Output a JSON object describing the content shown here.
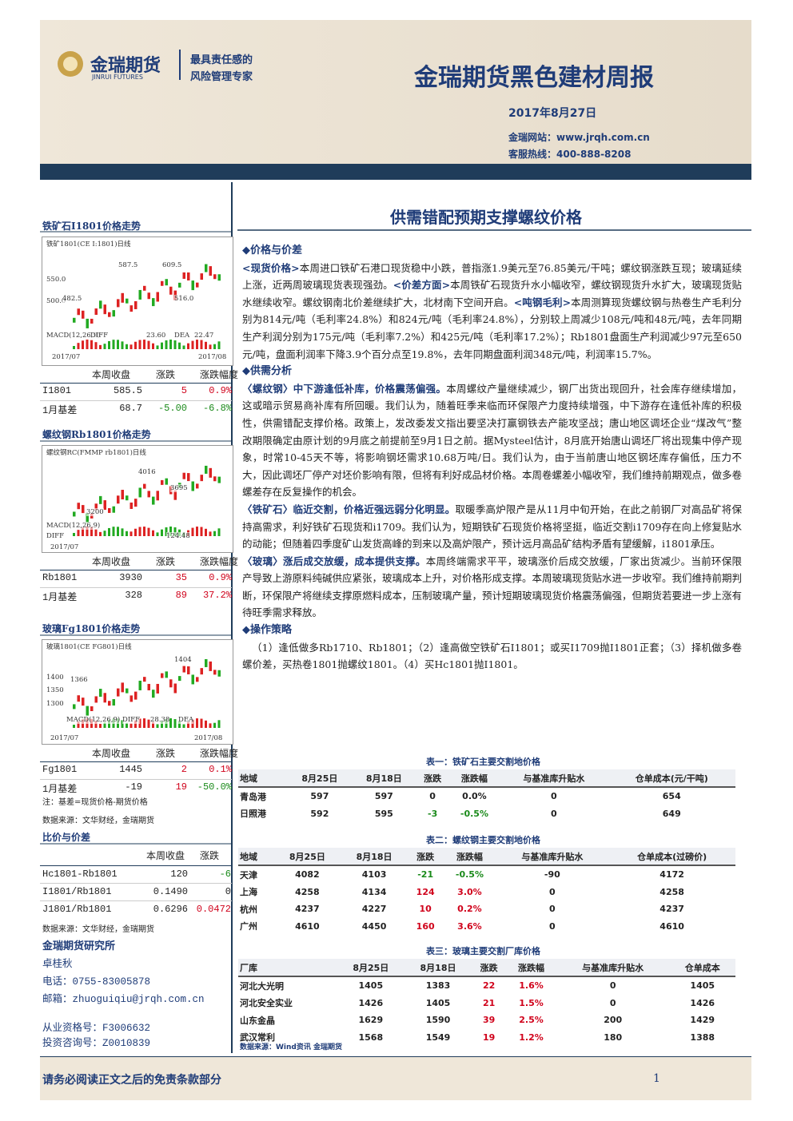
{
  "header": {
    "logo_name": "金瑞期货",
    "logo_sub": "JINRUI FUTURES",
    "slogan": [
      "最具责任感的",
      "风险管理专家"
    ],
    "title": "金瑞期货黑色建材周报",
    "date": "2017年8月27日",
    "website": "金瑞网站：www.jrqh.com.cn",
    "hotline": "客服热线：400-888-8208"
  },
  "headline": "供需错配预期支撑螺纹价格",
  "sidebar": {
    "charts": [
      {
        "title": "铁矿石I1801价格走势",
        "chart_labels": [
          "铁矿1801(CE I:1801)日线",
          "587.5",
          "609.5",
          "550.0",
          "500.0",
          "482.5",
          "516.0",
          "MACD(12,26,9)",
          "DIFF",
          "23.60",
          "DEA",
          "22.47",
          "2017/07",
          "2017/08"
        ],
        "headers": [
          "本周收盘",
          "涨跌",
          "涨跌幅度"
        ],
        "rows": [
          [
            "I1801",
            "585.5",
            "5",
            "0.9%"
          ],
          [
            "1月基差",
            "68.7",
            "-5.00",
            "-6.8%"
          ]
        ]
      },
      {
        "title": "螺纹钢Rb1801价格走势",
        "chart_labels": [
          "螺纹钢RC(FMMP rb1801)日线",
          "4016",
          "3695",
          "3200",
          "MACD(12,26,9)",
          "DIFF",
          "124.48",
          "2017/07"
        ],
        "headers": [
          "本周收盘",
          "涨跌",
          "涨跌幅度"
        ],
        "rows": [
          [
            "Rb1801",
            "3930",
            "35",
            "0.9%"
          ],
          [
            "1月基差",
            "328",
            "89",
            "37.2%"
          ]
        ]
      },
      {
        "title": "玻璃Fg1801价格走势",
        "chart_labels": [
          "玻璃1801(CE FG801)日线",
          "1404",
          "1366",
          "1400",
          "1350",
          "1300",
          "MACD(12,26,9)",
          "DIFF",
          "28.38",
          "DEA",
          "2017/07",
          "2017/08"
        ],
        "headers": [
          "本周收盘",
          "涨跌",
          "涨跌幅度"
        ],
        "rows": [
          [
            "Fg1801",
            "1445",
            "2",
            "0.1%"
          ],
          [
            "1月基差",
            "-19",
            "19",
            "-50.0%"
          ]
        ]
      }
    ],
    "note": "注：基差=现货价格-期货价格",
    "source": "数据来源：文华财经，金瑞期货",
    "ratio": {
      "title": "比价与价差",
      "headers": [
        "本周收盘",
        "涨跌"
      ],
      "rows": [
        [
          "Hc1801-Rb1801",
          "120",
          "-6"
        ],
        [
          "I1801/Rb1801",
          "0.1490",
          "0"
        ],
        [
          "J1801/Rb1801",
          "0.6296",
          "0.0472"
        ]
      ],
      "source": "数据来源：文华财经，金瑞期货"
    },
    "contact": {
      "institute": "金瑞期货研究所",
      "name": "卓桂秋",
      "phone": "电话：0755-83005878",
      "email": "邮箱：zhuoguiqiu@jrqh.com.cn",
      "cert": "从业资格号：F3006632",
      "advisory": "投资咨询号：Z0010839"
    }
  },
  "main": {
    "sections": [
      {
        "heading": "价格与价差",
        "paragraphs": [
          {
            "segments": [
              {
                "text": "<现货价格>",
                "hl": true
              },
              {
                "text": "本周进口铁矿石港口现货稳中小跌，普指涨1.9美元至76.85美元/干吨；螺纹钢涨跌互现；玻璃延续上涨，近两周玻璃现货表现强劲。"
              },
              {
                "text": "<价差方面>",
                "hl": true
              },
              {
                "text": "本周铁矿石现货升水小幅收窄，螺纹钢现货升水扩大，玻璃现货贴水继续收窄。螺纹钢南北价差继续扩大，北材南下空间开启。"
              },
              {
                "text": "<吨钢毛利>",
                "hl": true
              },
              {
                "text": "本周测算现货螺纹钢与热卷生产毛利分别为814元/吨（毛利率24.8%）和824元/吨（毛利率24.8%），分别较上周减少108元/吨和48元/吨，去年同期生产利润分别为175元/吨（毛利率7.2%）和425元/吨（毛利率17.2%）；Rb1801盘面生产利润减少97元至650元/吨，盘面利润率下降3.9个百分点至19.8%，去年同期盘面利润348元/吨，利润率15.7%。"
              }
            ]
          }
        ]
      },
      {
        "heading": "供需分析",
        "paragraphs": [
          {
            "segments": [
              {
                "text": "〈螺纹钢〉中下游逢低补库，价格震荡偏强。",
                "hl": true
              },
              {
                "text": "本周螺纹产量继续减少，钢厂出货出现回升，社会库存继续增加，这或暗示贸易商补库有所回暖。我们认为，随着旺季来临而环保限产力度持续增强，中下游存在逢低补库的积极性，供需错配支撑价格。政策上，发改委发文指出要坚决打赢钢铁去产能攻坚战；唐山地区调坯企业“煤改气”整改期限确定由原计划的9月底之前提前至9月1日之前。据Mysteel估计，8月底开始唐山调坯厂将出现集中停产现象，时常10-45天不等，将影响钢坯需求10.68万吨/日。我们认为，由于当前唐山地区钢坯库存偏低，压力不大，因此调坯厂停产对坯价影响有限，但将有利好成品材价格。本周卷螺差小幅收窄，我们维持前期观点，做多卷螺差存在反复操作的机会。"
              }
            ]
          },
          {
            "segments": [
              {
                "text": "〈铁矿石〉临近交割，价格近强远弱分化明显。",
                "hl": true
              },
              {
                "text": "取暖季高炉限产是从11月中旬开始，在此之前钢厂对高品矿将保持高需求，利好铁矿石现货和i1709。我们认为，短期铁矿石现货价格将坚挺，临近交割i1709存在向上修复贴水的动能；但随着四季度矿山发货高峰的到来以及高炉限产，预计远月高品矿结构矛盾有望缓解，i1801承压。"
              }
            ]
          },
          {
            "segments": [
              {
                "text": "〈玻璃〉涨后成交放缓，成本提供支撑。",
                "hl": true
              },
              {
                "text": "本周终端需求平平，玻璃涨价后成交放缓，厂家出货减少。当前环保限产导致上游原料纯碱供应紧张，玻璃成本上升，对价格形成支撑。本周玻璃现货贴水进一步收窄。我们维持前期判断，环保限产将继续支撑原燃料成本，压制玻璃产量，预计短期玻璃现货价格震荡偏强，但期货若要进一步上涨有待旺季需求释放。"
              }
            ]
          }
        ]
      },
      {
        "heading": "操作策略",
        "paragraphs": [
          {
            "segments": [
              {
                "text": "（1）逢低做多Rb1710、Rb1801；（2）逢高做空铁矿石I1801；或买I1709抛I1801正套；（3）择机做多卷螺价差，买热卷1801抛螺纹1801。（4）买Hc1801抛I1801。"
              }
            ]
          }
        ]
      }
    ]
  },
  "tables": [
    {
      "title": "表一：铁矿石主要交割地价格",
      "headers": [
        "地域",
        "8月25日",
        "8月18日",
        "涨跌",
        "涨跌幅",
        "与基准库升贴水",
        "仓单成本(元/干吨)"
      ],
      "rows": [
        [
          "青岛港",
          "597",
          "597",
          "0",
          "0.0%",
          "0",
          "654"
        ],
        [
          "日照港",
          "592",
          "595",
          "-3",
          "-0.5%",
          "0",
          "649"
        ]
      ]
    },
    {
      "title": "表二：螺纹钢主要交割地价格",
      "headers": [
        "地域",
        "8月25日",
        "8月18日",
        "涨跌",
        "涨跌幅",
        "与基准库升贴水",
        "仓单成本(过磅价)"
      ],
      "rows": [
        [
          "天津",
          "4082",
          "4103",
          "-21",
          "-0.5%",
          "-90",
          "4172"
        ],
        [
          "上海",
          "4258",
          "4134",
          "124",
          "3.0%",
          "0",
          "4258"
        ],
        [
          "杭州",
          "4237",
          "4227",
          "10",
          "0.2%",
          "0",
          "4237"
        ],
        [
          "广州",
          "4610",
          "4450",
          "160",
          "3.6%",
          "0",
          "4610"
        ]
      ]
    },
    {
      "title": "表三：玻璃主要交割厂库价格",
      "headers": [
        "厂库",
        "8月25日",
        "8月18日",
        "涨跌",
        "涨跌幅",
        "与基准库升贴水",
        "仓单成本"
      ],
      "rows": [
        [
          "河北大光明",
          "1405",
          "1383",
          "22",
          "1.6%",
          "0",
          "1405"
        ],
        [
          "河北安全实业",
          "1426",
          "1405",
          "21",
          "1.5%",
          "0",
          "1426"
        ],
        [
          "山东金晶",
          "1629",
          "1590",
          "39",
          "2.5%",
          "200",
          "1429"
        ],
        [
          "武汉常利",
          "1568",
          "1549",
          "19",
          "1.2%",
          "180",
          "1388"
        ]
      ]
    }
  ],
  "tables_source": "数据来源：Wind资讯 金瑞期货",
  "footer": {
    "disclaimer": "请务必阅读正文之后的免责条款部分",
    "page": "1"
  }
}
